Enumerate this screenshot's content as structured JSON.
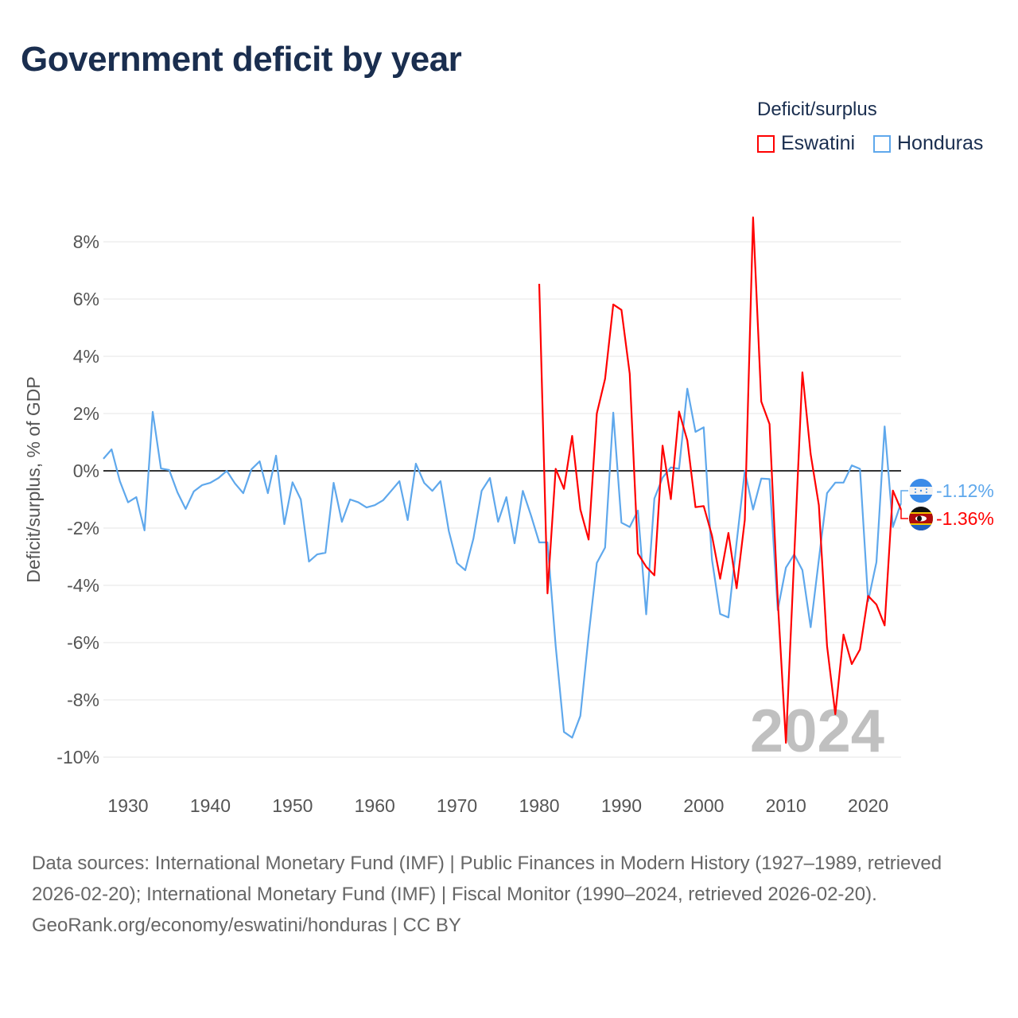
{
  "title": "Government deficit by year",
  "legend": {
    "title": "Deficit/surplus",
    "items": [
      {
        "label": "Eswatini",
        "color": "#ff0000"
      },
      {
        "label": "Honduras",
        "color": "#5fa8ec"
      }
    ]
  },
  "current_year_label": "2024",
  "end_labels": [
    {
      "country": "Honduras",
      "value_label": "-1.12%",
      "color": "#5fa8ec",
      "flag": "honduras-flag"
    },
    {
      "country": "Eswatini",
      "value_label": "-1.36%",
      "color": "#ff0000",
      "flag": "eswatini-flag"
    }
  ],
  "footer": {
    "sources": "Data sources: International Monetary Fund (IMF) | Public Finances in Modern History (1927–1989, retrieved 2026-02-20); International Monetary Fund (IMF) | Fiscal Monitor (1990–2024, retrieved 2026-02-20).",
    "credit": "GeoRank.org/economy/eswatini/honduras | CC BY"
  },
  "chart_data": {
    "type": "line",
    "title": "Government deficit by year",
    "xlabel": "",
    "ylabel": "Deficit/surplus, % of GDP",
    "xlim": [
      1927,
      2024
    ],
    "ylim": [
      -10.5,
      9
    ],
    "x_ticks": [
      1930,
      1940,
      1950,
      1960,
      1970,
      1980,
      1990,
      2000,
      2010,
      2020
    ],
    "y_ticks": [
      8,
      6,
      4,
      2,
      0,
      -2,
      -4,
      -6,
      -8,
      -10
    ],
    "y_tick_labels": [
      "8%",
      "6%",
      "4%",
      "2%",
      "0%",
      "-2%",
      "-4%",
      "-6%",
      "-8%",
      "-10%"
    ],
    "grid": true,
    "legend_position": "top-right",
    "series": [
      {
        "name": "Eswatini",
        "color": "#ff0000",
        "start_year": 1980,
        "values": [
          6.53,
          -4.28,
          0.07,
          -0.63,
          1.22,
          -1.35,
          -2.4,
          2.0,
          3.21,
          5.81,
          5.62,
          3.39,
          -2.89,
          -3.35,
          -3.65,
          0.88,
          -0.99,
          2.07,
          1.06,
          -1.27,
          -1.23,
          -2.26,
          -3.77,
          -2.17,
          -4.1,
          -1.71,
          8.85,
          2.42,
          1.63,
          -4.5,
          -9.5,
          -3.0,
          3.44,
          0.58,
          -1.2,
          -6.12,
          -8.5,
          -5.72,
          -6.75,
          -6.24,
          -4.37,
          -4.67,
          -5.4,
          -0.69,
          -1.36
        ]
      },
      {
        "name": "Honduras",
        "color": "#5fa8ec",
        "start_year": 1927,
        "values": [
          0.42,
          0.75,
          -0.36,
          -1.1,
          -0.92,
          -2.08,
          2.06,
          0.08,
          0.03,
          -0.75,
          -1.33,
          -0.72,
          -0.5,
          -0.42,
          -0.25,
          0.0,
          -0.44,
          -0.78,
          0.05,
          0.33,
          -0.78,
          0.53,
          -1.86,
          -0.4,
          -1.0,
          -3.17,
          -2.92,
          -2.86,
          -0.42,
          -1.78,
          -1.0,
          -1.1,
          -1.28,
          -1.2,
          -1.03,
          -0.7,
          -0.36,
          -1.72,
          0.25,
          -0.42,
          -0.7,
          -0.36,
          -2.1,
          -3.22,
          -3.47,
          -2.36,
          -0.7,
          -0.25,
          -1.78,
          -0.92,
          -2.53,
          -0.7,
          -1.56,
          -2.5,
          -2.5,
          -6.12,
          -9.12,
          -9.32,
          -8.56,
          -5.76,
          -3.22,
          -2.68,
          2.03,
          -1.81,
          -1.96,
          -1.39,
          -5.01,
          -0.97,
          -0.24,
          0.12,
          0.07,
          2.87,
          1.36,
          1.52,
          -3.1,
          -5.0,
          -5.12,
          -2.5,
          0.0,
          -1.35,
          -0.27,
          -0.29,
          -4.86,
          -3.38,
          -2.92,
          -3.47,
          -5.46,
          -3.1,
          -0.78,
          -0.41,
          -0.41,
          0.19,
          0.07,
          -4.55,
          -3.19,
          1.55,
          -1.96,
          -1.12
        ]
      }
    ]
  }
}
